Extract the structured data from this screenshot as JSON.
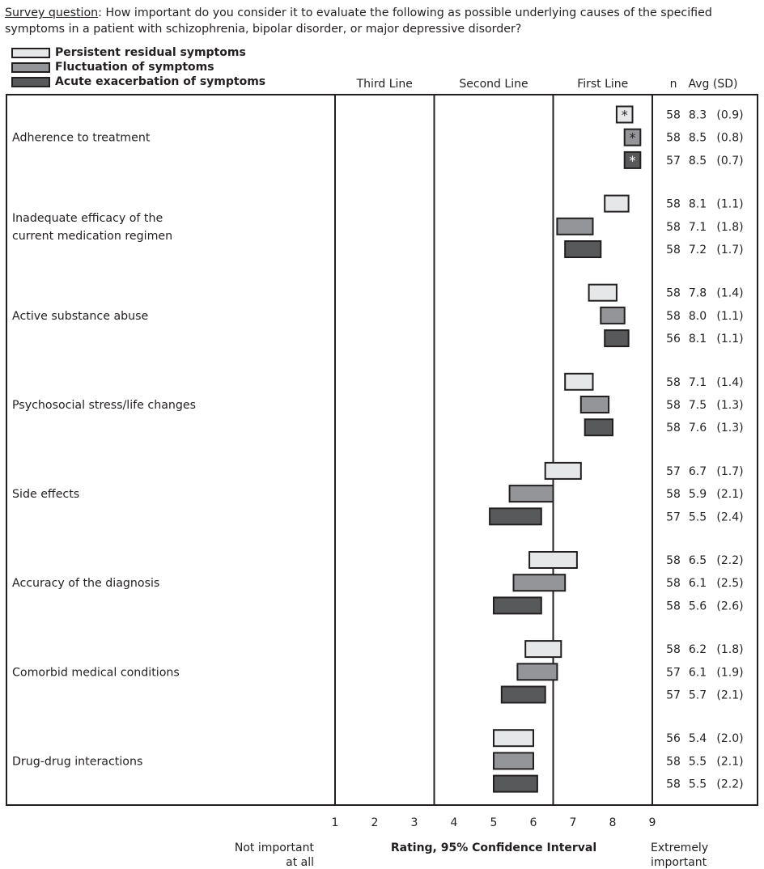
{
  "question": {
    "lead": "Survey question",
    "text": ": How important do you consider it to evaluate the following as possible underlying causes of the specified symptoms in a patient with schizophrenia, bipolar disorder, or major depressive disorder?"
  },
  "colors": {
    "persistent": "#e6e7e8",
    "fluctuation": "#939598",
    "acute": "#58595b",
    "border": "#231f20"
  },
  "chart_data": {
    "type": "bar",
    "subtype": "confidence-interval",
    "legend": [
      {
        "name": "Persistent residual symptoms",
        "color": "#e6e7e8"
      },
      {
        "name": "Fluctuation of symptoms",
        "color": "#939598"
      },
      {
        "name": "Acute exacerbation of symptoms",
        "color": "#58595b"
      }
    ],
    "zones": [
      "Third Line",
      "Second Line",
      "First Line"
    ],
    "zone_breaks": [
      1,
      3.5,
      6.5,
      9
    ],
    "col_n": "n",
    "col_avg": "Avg (SD)",
    "xlim": [
      1,
      9
    ],
    "xticks": [
      "1",
      "2",
      "3",
      "4",
      "5",
      "6",
      "7",
      "8",
      "9"
    ],
    "xlabel": "Rating, 95% Confidence Interval",
    "x_low_label": "Not important at all",
    "x_high_label": "Extremely important",
    "categories": [
      {
        "label": "Adherence to treatment",
        "bars": [
          {
            "series": 0,
            "lo": 8.1,
            "hi": 8.5,
            "n": "58",
            "avg": "8.3",
            "sd": "(0.9)",
            "marker": "*"
          },
          {
            "series": 1,
            "lo": 8.3,
            "hi": 8.7,
            "n": "58",
            "avg": "8.5",
            "sd": "(0.8)",
            "marker": "*"
          },
          {
            "series": 2,
            "lo": 8.3,
            "hi": 8.7,
            "n": "57",
            "avg": "8.5",
            "sd": "(0.7)",
            "marker": "*"
          }
        ]
      },
      {
        "label": "Inadequate efficacy of the current medication regimen",
        "bars": [
          {
            "series": 0,
            "lo": 7.8,
            "hi": 8.4,
            "n": "58",
            "avg": "8.1",
            "sd": "(1.1)"
          },
          {
            "series": 1,
            "lo": 6.6,
            "hi": 7.5,
            "n": "58",
            "avg": "7.1",
            "sd": "(1.8)"
          },
          {
            "series": 2,
            "lo": 6.8,
            "hi": 7.7,
            "n": "58",
            "avg": "7.2",
            "sd": "(1.7)"
          }
        ]
      },
      {
        "label": "Active substance abuse",
        "bars": [
          {
            "series": 0,
            "lo": 7.4,
            "hi": 8.1,
            "n": "58",
            "avg": "7.8",
            "sd": "(1.4)"
          },
          {
            "series": 1,
            "lo": 7.7,
            "hi": 8.3,
            "n": "58",
            "avg": "8.0",
            "sd": "(1.1)"
          },
          {
            "series": 2,
            "lo": 7.8,
            "hi": 8.4,
            "n": "56",
            "avg": "8.1",
            "sd": "(1.1)"
          }
        ]
      },
      {
        "label": "Psychosocial stress/life changes",
        "bars": [
          {
            "series": 0,
            "lo": 6.8,
            "hi": 7.5,
            "n": "58",
            "avg": "7.1",
            "sd": "(1.4)"
          },
          {
            "series": 1,
            "lo": 7.2,
            "hi": 7.9,
            "n": "58",
            "avg": "7.5",
            "sd": "(1.3)"
          },
          {
            "series": 2,
            "lo": 7.3,
            "hi": 8.0,
            "n": "58",
            "avg": "7.6",
            "sd": "(1.3)"
          }
        ]
      },
      {
        "label": "Side effects",
        "bars": [
          {
            "series": 0,
            "lo": 6.3,
            "hi": 7.2,
            "n": "57",
            "avg": "6.7",
            "sd": "(1.7)"
          },
          {
            "series": 1,
            "lo": 5.4,
            "hi": 6.5,
            "n": "58",
            "avg": "5.9",
            "sd": "(2.1)"
          },
          {
            "series": 2,
            "lo": 4.9,
            "hi": 6.2,
            "n": "57",
            "avg": "5.5",
            "sd": "(2.4)"
          }
        ]
      },
      {
        "label": "Accuracy of the diagnosis",
        "bars": [
          {
            "series": 0,
            "lo": 5.9,
            "hi": 7.1,
            "n": "58",
            "avg": "6.5",
            "sd": "(2.2)"
          },
          {
            "series": 1,
            "lo": 5.5,
            "hi": 6.8,
            "n": "58",
            "avg": "6.1",
            "sd": "(2.5)"
          },
          {
            "series": 2,
            "lo": 5.0,
            "hi": 6.2,
            "n": "58",
            "avg": "5.6",
            "sd": "(2.6)"
          }
        ]
      },
      {
        "label": "Comorbid medical conditions",
        "bars": [
          {
            "series": 0,
            "lo": 5.8,
            "hi": 6.7,
            "n": "58",
            "avg": "6.2",
            "sd": "(1.8)"
          },
          {
            "series": 1,
            "lo": 5.6,
            "hi": 6.6,
            "n": "57",
            "avg": "6.1",
            "sd": "(1.9)"
          },
          {
            "series": 2,
            "lo": 5.2,
            "hi": 6.3,
            "n": "57",
            "avg": "5.7",
            "sd": "(2.1)"
          }
        ]
      },
      {
        "label": "Drug-drug interactions",
        "bars": [
          {
            "series": 0,
            "lo": 5.0,
            "hi": 6.0,
            "n": "56",
            "avg": "5.4",
            "sd": "(2.0)"
          },
          {
            "series": 1,
            "lo": 5.0,
            "hi": 6.0,
            "n": "58",
            "avg": "5.5",
            "sd": "(2.1)"
          },
          {
            "series": 2,
            "lo": 5.0,
            "hi": 6.1,
            "n": "58",
            "avg": "5.5",
            "sd": "(2.2)"
          }
        ]
      }
    ]
  }
}
